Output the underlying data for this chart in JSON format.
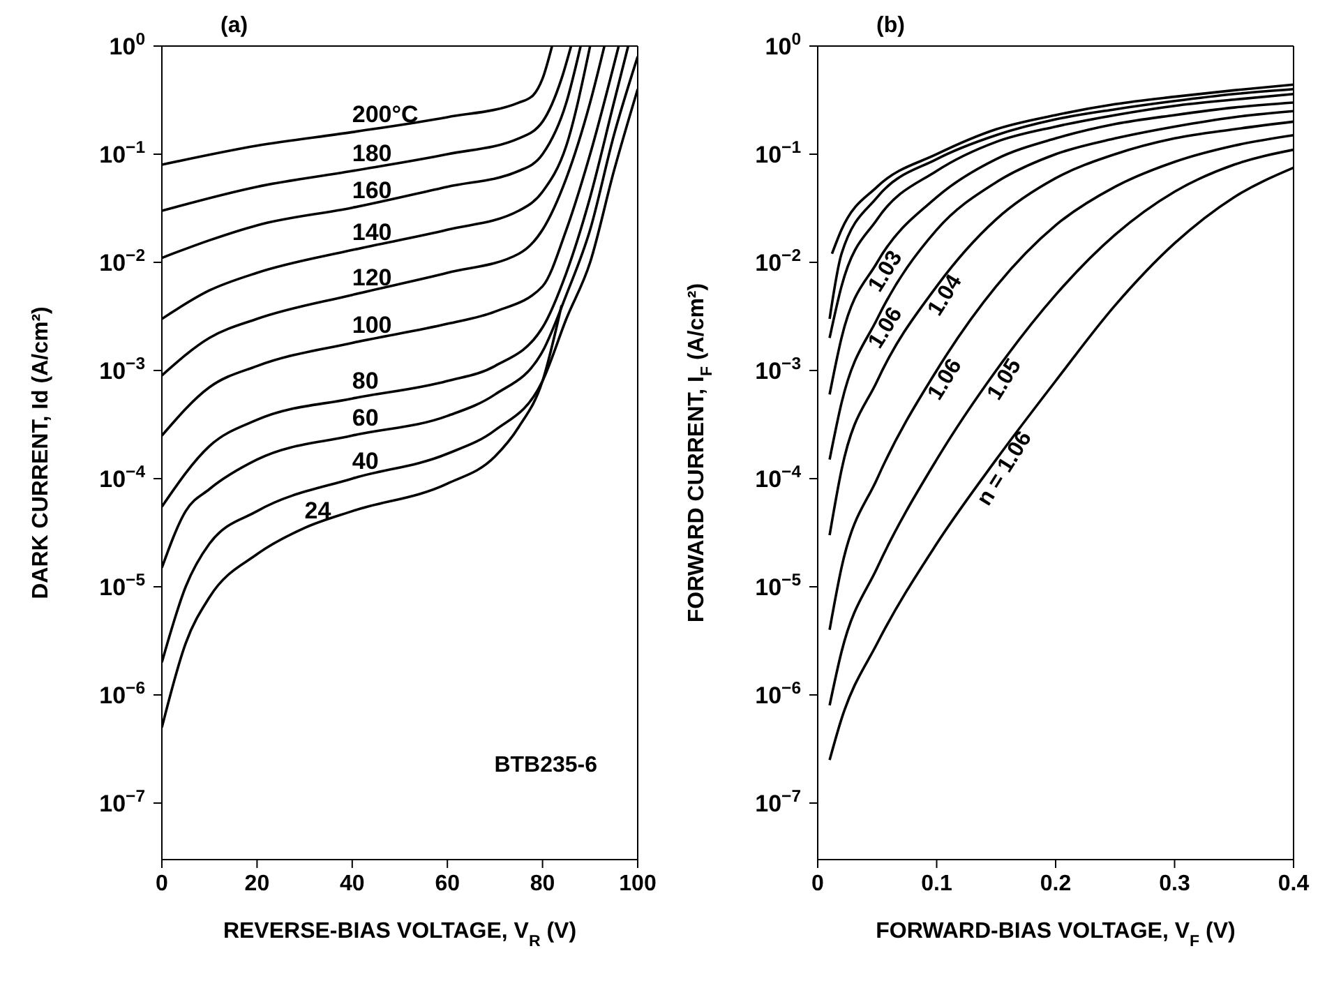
{
  "chart_data": [
    {
      "type": "line",
      "title": "(a)",
      "xlabel": "REVERSE-BIAS VOLTAGE, V$_{R}$ (V)",
      "ylabel": "DARK CURRENT, Id (A/cm²)",
      "log": "y",
      "xlim": [
        0,
        100
      ],
      "xticks": [
        0,
        20,
        40,
        60,
        80,
        100
      ],
      "ylim": [
        3e-08,
        1
      ],
      "yticks": [
        {
          "value": 1,
          "label": "10$^{0}$"
        },
        {
          "value": 0.1,
          "label": "10$^{−1}$"
        },
        {
          "value": 0.01,
          "label": "10$^{−2}$"
        },
        {
          "value": 0.001,
          "label": "10$^{−3}$"
        },
        {
          "value": 0.0001,
          "label": "10$^{−4}$"
        },
        {
          "value": 1e-05,
          "label": "10$^{−5}$"
        },
        {
          "value": 1e-06,
          "label": "10$^{−6}$"
        },
        {
          "value": 1e-07,
          "label": "10$^{−7}$"
        }
      ],
      "annotations": [
        "BTB235-6"
      ],
      "series": [
        {
          "name": "200°C",
          "color": "#000000",
          "x": [
            0,
            20,
            40,
            60,
            75,
            78,
            80,
            82
          ],
          "values": [
            0.08,
            0.12,
            0.16,
            0.22,
            0.3,
            0.35,
            0.5,
            1
          ]
        },
        {
          "name": "180",
          "color": "#000000",
          "x": [
            0,
            20,
            40,
            60,
            75,
            80,
            84,
            86
          ],
          "values": [
            0.03,
            0.05,
            0.07,
            0.1,
            0.14,
            0.2,
            0.5,
            1
          ]
        },
        {
          "name": "160",
          "color": "#000000",
          "x": [
            0,
            10,
            20,
            40,
            60,
            75,
            80,
            85,
            88
          ],
          "values": [
            0.011,
            0.016,
            0.022,
            0.032,
            0.05,
            0.07,
            0.1,
            0.3,
            1
          ]
        },
        {
          "name": "140",
          "color": "#000000",
          "x": [
            0,
            10,
            20,
            40,
            60,
            75,
            80,
            85,
            90
          ],
          "values": [
            0.003,
            0.0055,
            0.008,
            0.013,
            0.02,
            0.03,
            0.045,
            0.12,
            1
          ]
        },
        {
          "name": "120",
          "color": "#000000",
          "x": [
            0,
            10,
            20,
            40,
            60,
            75,
            80,
            85,
            90,
            93
          ],
          "values": [
            0.0009,
            0.002,
            0.003,
            0.005,
            0.008,
            0.012,
            0.02,
            0.06,
            0.3,
            1
          ]
        },
        {
          "name": "100",
          "color": "#000000",
          "x": [
            0,
            10,
            20,
            40,
            60,
            70,
            80,
            85,
            90,
            96
          ],
          "values": [
            0.00025,
            0.0007,
            0.0011,
            0.0018,
            0.0027,
            0.0035,
            0.006,
            0.02,
            0.1,
            1
          ]
        },
        {
          "name": "80",
          "color": "#000000",
          "x": [
            0,
            10,
            20,
            40,
            60,
            70,
            80,
            85,
            90,
            95,
            98
          ],
          "values": [
            5.5e-05,
            0.0002,
            0.00035,
            0.00055,
            0.0008,
            0.0011,
            0.0025,
            0.008,
            0.04,
            0.3,
            1
          ]
        },
        {
          "name": "60",
          "color": "#000000",
          "x": [
            0,
            5,
            10,
            20,
            40,
            60,
            70,
            80,
            85,
            90,
            95,
            100
          ],
          "values": [
            1.5e-05,
            5e-05,
            8e-05,
            0.00015,
            0.00025,
            0.00038,
            0.0006,
            0.0015,
            0.005,
            0.02,
            0.15,
            0.8
          ]
        },
        {
          "name": "40",
          "color": "#000000",
          "x": [
            0,
            5,
            10,
            20,
            40,
            60,
            70,
            80,
            85,
            90,
            95,
            100
          ],
          "values": [
            2e-06,
            1e-05,
            2.5e-05,
            5e-05,
            0.0001,
            0.00017,
            0.00028,
            0.0008,
            0.003,
            0.01,
            0.07,
            0.4
          ]
        },
        {
          "name": "24",
          "color": "#000000",
          "x": [
            0,
            5,
            10,
            20,
            30,
            40,
            60,
            70,
            75,
            80,
            84
          ],
          "values": [
            5e-07,
            3e-06,
            8e-06,
            2e-05,
            3.5e-05,
            5e-05,
            9e-05,
            0.00016,
            0.0003,
            0.0008,
            0.004
          ]
        }
      ]
    },
    {
      "type": "line",
      "title": "(b)",
      "xlabel": "FORWARD-BIAS VOLTAGE, V$_{F}$ (V)",
      "ylabel": "FORWARD CURRENT, I$_{F}$ (A/cm²)",
      "log": "y",
      "xlim": [
        0,
        0.4
      ],
      "xticks": [
        0,
        0.1,
        0.2,
        0.3,
        0.4
      ],
      "ylim": [
        3e-08,
        1
      ],
      "yticks": [
        {
          "value": 1,
          "label": "10$^{0}$"
        },
        {
          "value": 0.1,
          "label": "10$^{−1}$"
        },
        {
          "value": 0.01,
          "label": "10$^{−2}$"
        },
        {
          "value": 0.001,
          "label": "10$^{−3}$"
        },
        {
          "value": 0.0001,
          "label": "10$^{−4}$"
        },
        {
          "value": 1e-05,
          "label": "10$^{−5}$"
        },
        {
          "value": 1e-06,
          "label": "10$^{−6}$"
        },
        {
          "value": 1e-07,
          "label": "10$^{−7}$"
        }
      ],
      "annotations": [
        {
          "text": "1.03",
          "x": 0.05,
          "y": 0.01
        },
        {
          "text": "1.06",
          "x": 0.05,
          "y": 0.003
        },
        {
          "text": "1.04",
          "x": 0.1,
          "y": 0.006
        },
        {
          "text": "1.06",
          "x": 0.1,
          "y": 0.001
        },
        {
          "text": "1.05",
          "x": 0.15,
          "y": 0.001
        },
        {
          "text": "n = 1.06",
          "x": 0.15,
          "y": 0.00015
        }
      ],
      "series": [
        {
          "color": "#000000",
          "x": [
            0.012,
            0.02,
            0.05,
            0.1,
            0.15,
            0.2,
            0.25,
            0.3,
            0.35,
            0.4
          ],
          "values": [
            0.012,
            0.02,
            0.05,
            0.1,
            0.17,
            0.23,
            0.29,
            0.34,
            0.39,
            0.44
          ]
        },
        {
          "color": "#000000",
          "x": [
            0.01,
            0.02,
            0.05,
            0.1,
            0.15,
            0.2,
            0.25,
            0.3,
            0.35,
            0.4
          ],
          "values": [
            0.003,
            0.012,
            0.04,
            0.09,
            0.15,
            0.21,
            0.26,
            0.31,
            0.36,
            0.4
          ]
        },
        {
          "color": "#000000",
          "x": [
            0.01,
            0.02,
            0.05,
            0.1,
            0.15,
            0.2,
            0.25,
            0.3,
            0.35,
            0.4
          ],
          "values": [
            0.002,
            0.006,
            0.025,
            0.07,
            0.13,
            0.18,
            0.23,
            0.28,
            0.32,
            0.36
          ]
        },
        {
          "color": "#000000",
          "x": [
            0.01,
            0.02,
            0.05,
            0.1,
            0.15,
            0.2,
            0.25,
            0.3,
            0.35,
            0.4
          ],
          "values": [
            0.0006,
            0.002,
            0.01,
            0.04,
            0.09,
            0.14,
            0.19,
            0.23,
            0.27,
            0.3
          ]
        },
        {
          "color": "#000000",
          "x": [
            0.01,
            0.02,
            0.05,
            0.1,
            0.15,
            0.2,
            0.25,
            0.3,
            0.35,
            0.4
          ],
          "values": [
            0.00015,
            0.0005,
            0.003,
            0.02,
            0.055,
            0.1,
            0.14,
            0.18,
            0.22,
            0.25
          ]
        },
        {
          "color": "#000000",
          "x": [
            0.01,
            0.02,
            0.05,
            0.1,
            0.15,
            0.2,
            0.25,
            0.3,
            0.35,
            0.4
          ],
          "values": [
            3e-05,
            0.00012,
            0.0008,
            0.006,
            0.025,
            0.06,
            0.1,
            0.14,
            0.17,
            0.2
          ]
        },
        {
          "color": "#000000",
          "x": [
            0.01,
            0.02,
            0.05,
            0.1,
            0.15,
            0.2,
            0.25,
            0.3,
            0.35,
            0.4
          ],
          "values": [
            4e-06,
            1.5e-05,
            0.0001,
            0.001,
            0.006,
            0.022,
            0.05,
            0.085,
            0.12,
            0.15
          ]
        },
        {
          "color": "#000000",
          "x": [
            0.01,
            0.02,
            0.05,
            0.1,
            0.15,
            0.2,
            0.25,
            0.3,
            0.35,
            0.4
          ],
          "values": [
            8e-07,
            2.5e-06,
            1.5e-05,
            0.00015,
            0.001,
            0.005,
            0.018,
            0.045,
            0.08,
            0.11
          ]
        },
        {
          "color": "#000000",
          "x": [
            0.01,
            0.02,
            0.05,
            0.1,
            0.15,
            0.2,
            0.25,
            0.3,
            0.35,
            0.4
          ],
          "values": [
            2.5e-07,
            6e-07,
            3e-06,
            2.5e-05,
            0.00015,
            0.0008,
            0.004,
            0.015,
            0.04,
            0.075
          ]
        }
      ]
    }
  ]
}
